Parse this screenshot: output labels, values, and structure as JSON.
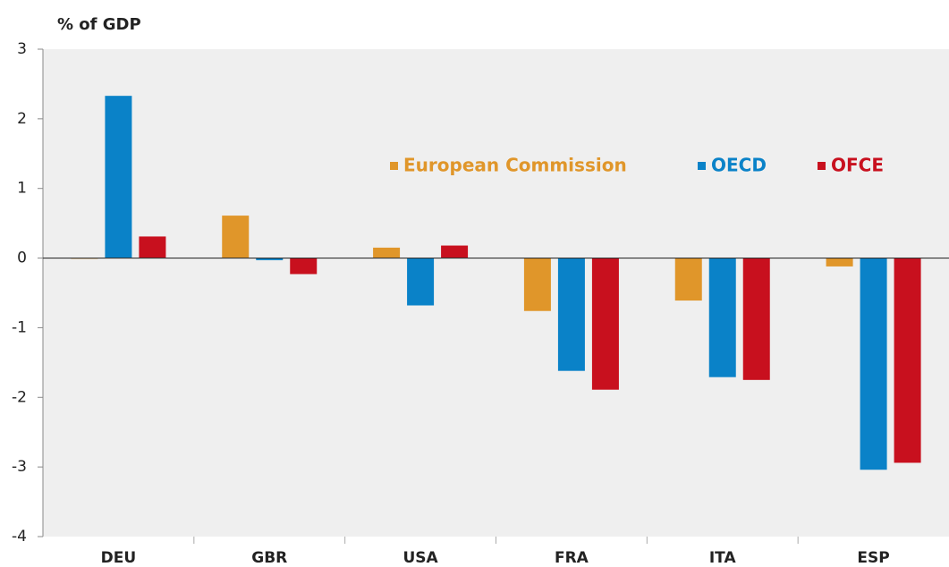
{
  "chart_data": {
    "type": "bar",
    "y_label": "% of GDP",
    "categories": [
      "DEU",
      "GBR",
      "USA",
      "FRA",
      "ITA",
      "ESP"
    ],
    "series": [
      {
        "name": "European Commission",
        "color": "#e0962a",
        "values": [
          -0.01,
          0.61,
          0.15,
          -0.76,
          -0.61,
          -0.12
        ]
      },
      {
        "name": "OECD",
        "color": "#0a82c8",
        "values": [
          2.33,
          -0.03,
          -0.68,
          -1.62,
          -1.71,
          -3.04
        ]
      },
      {
        "name": "OFCE",
        "color": "#c8101e",
        "values": [
          0.31,
          -0.23,
          0.18,
          -1.89,
          -1.75,
          -2.94
        ]
      }
    ],
    "ylim": [
      -4,
      3
    ],
    "yticks": [
      -4,
      -3,
      -2,
      -1,
      0,
      1,
      2,
      3
    ],
    "grid": false
  }
}
